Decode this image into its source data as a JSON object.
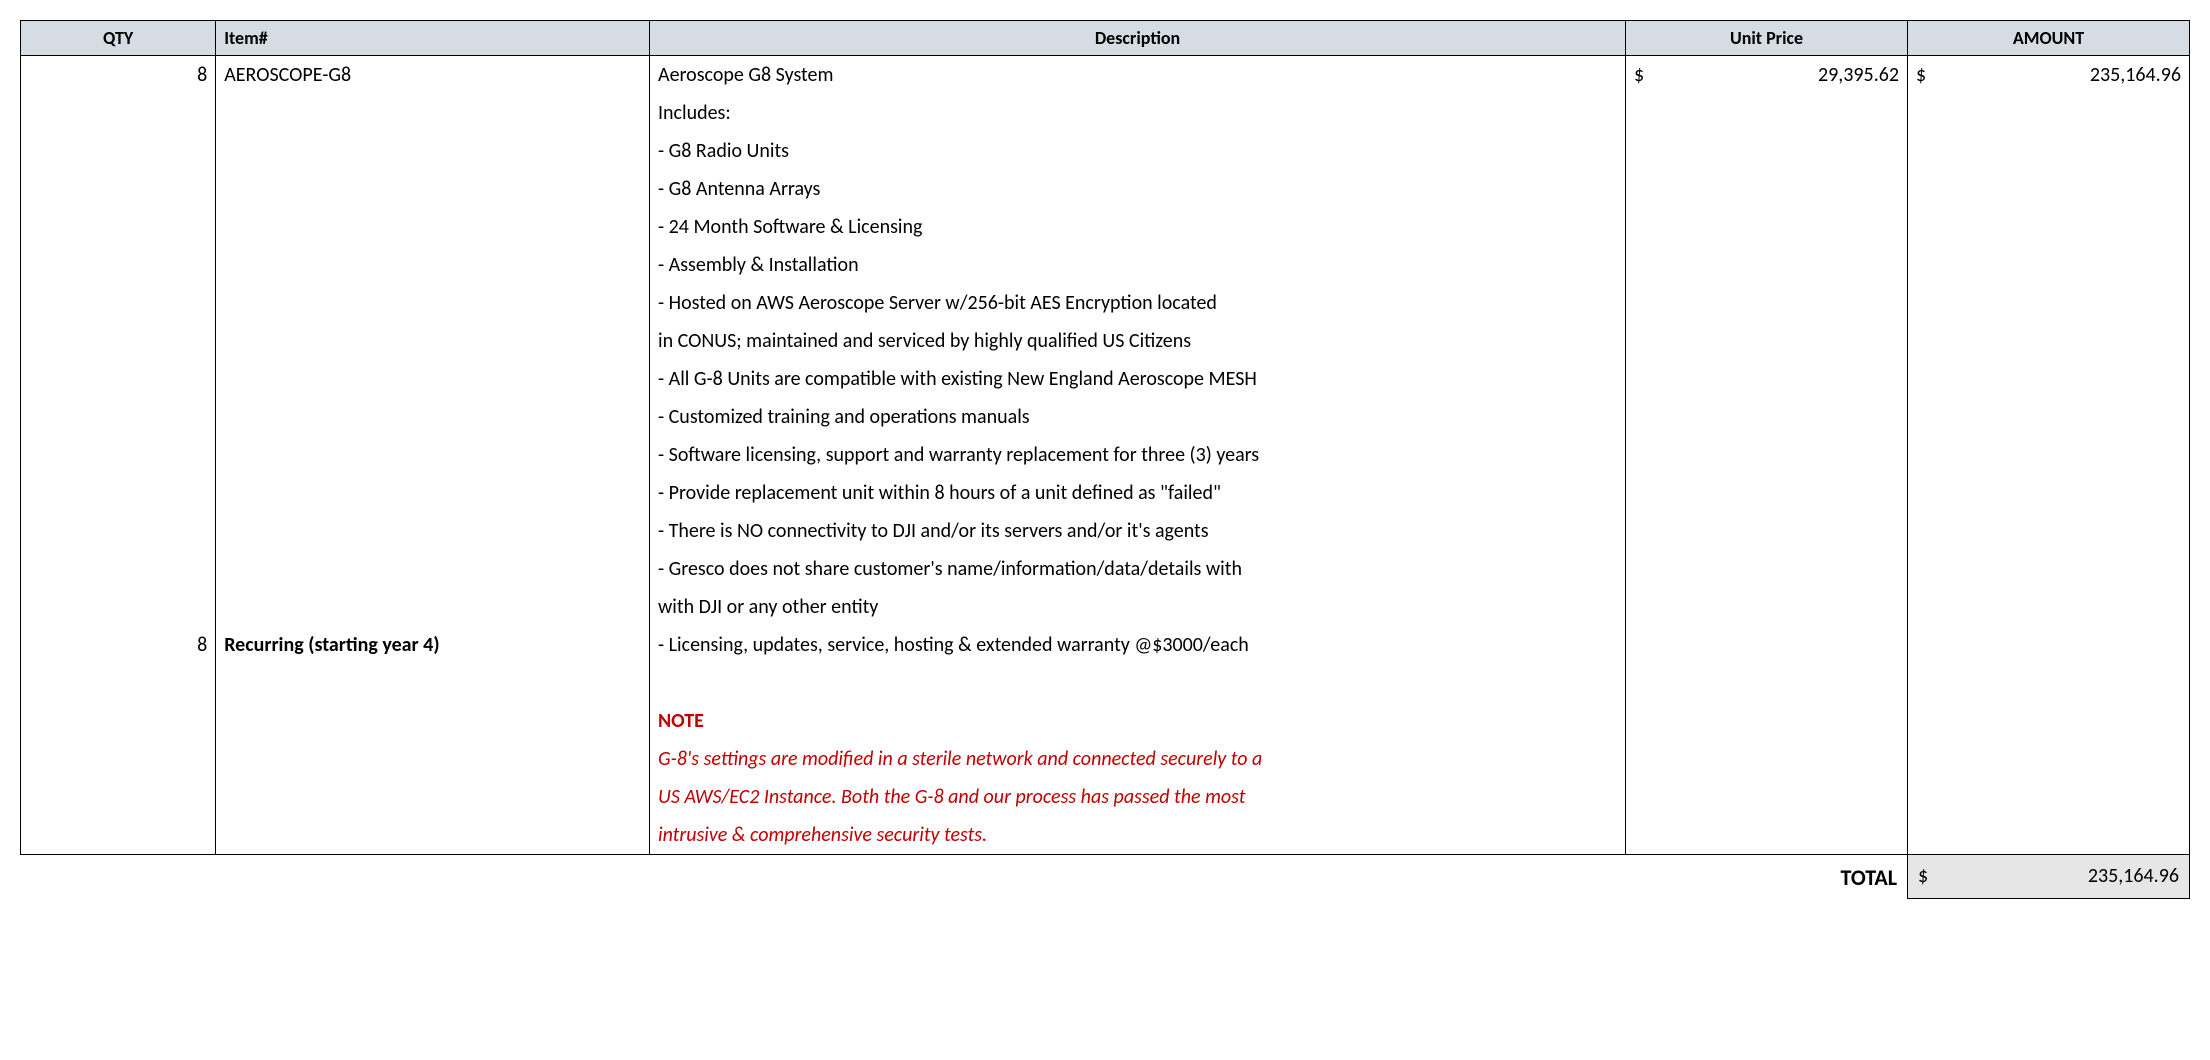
{
  "colors": {
    "header_bg": "#d5dce4",
    "border": "#000000",
    "text": "#000000",
    "note": "#c00000",
    "total_bg": "#e7e6e6"
  },
  "typography": {
    "font_family": "Calibri",
    "body_size_pt": 15,
    "header_size_pt": 13
  },
  "table": {
    "columns": [
      {
        "key": "qty",
        "label": "QTY",
        "width_pct": 9,
        "align": "center"
      },
      {
        "key": "item",
        "label": "Item#",
        "width_pct": 20,
        "align": "left"
      },
      {
        "key": "desc",
        "label": "Description",
        "width_pct": 45,
        "align": "center"
      },
      {
        "key": "unit",
        "label": "Unit Price",
        "width_pct": 13,
        "align": "center"
      },
      {
        "key": "amt",
        "label": "AMOUNT",
        "width_pct": 13,
        "align": "center"
      }
    ],
    "row1": {
      "qty": "8",
      "item": "AEROSCOPE-G8",
      "desc": "Aeroscope G8 System",
      "unit_currency": "$",
      "unit": "29,395.62",
      "amount_currency": "$",
      "amount": "235,164.96"
    },
    "desc_lines": {
      "l1": "Includes:",
      "l2": "- G8 Radio Units",
      "l3": "- G8 Antenna Arrays",
      "l4": "- 24 Month Software & Licensing",
      "l5": "- Assembly & Installation",
      "l6": "- Hosted on AWS Aeroscope Server w/256-bit AES Encryption located",
      "l6b": "  in CONUS; maintained and serviced by highly qualified US Citizens",
      "l7": "- All G-8 Units are compatible with existing New England Aeroscope MESH",
      "l8": "- Customized training and operations manuals",
      "l9": "- Software licensing, support and warranty replacement for three (3) years",
      "l10": "- Provide replacement unit within 8 hours of a unit defined as \"failed\"",
      "l11": "- There is NO connectivity to DJI and/or its servers and/or it's agents",
      "l12": "- Gresco does not share customer's name/information/data/details with",
      "l12b": "  with DJI or any other entity",
      "l13": "- Licensing, updates, service, hosting & extended warranty @$3000/each"
    },
    "row_recurring": {
      "qty": "8",
      "item": "Recurring (starting year 4)"
    },
    "note": {
      "title": "NOTE",
      "n1": "G-8's settings are modified in a sterile network and connected securely to a",
      "n2": "US AWS/EC2 Instance.  Both the G-8 and our process has passed the most",
      "n3": "intrusive & comprehensive security tests."
    },
    "total": {
      "label": "TOTAL",
      "currency": "$",
      "value": "235,164.96"
    }
  }
}
